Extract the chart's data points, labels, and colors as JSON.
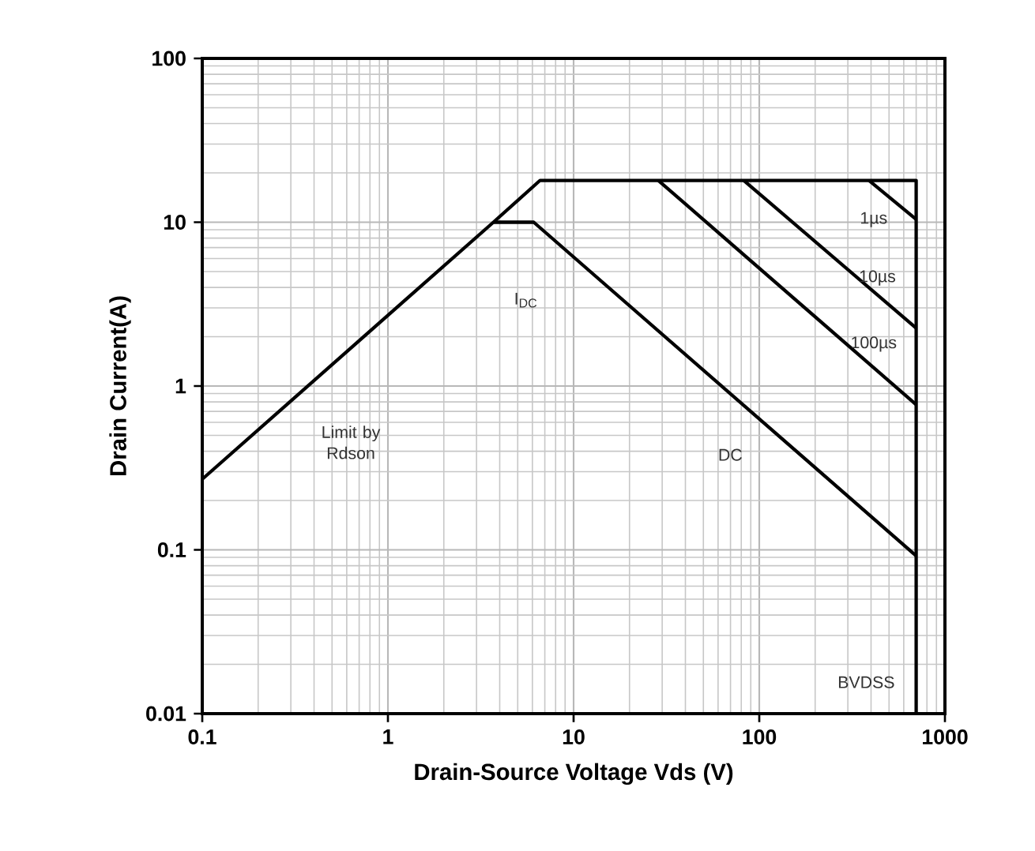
{
  "chart_data": {
    "type": "line",
    "xlabel": "Drain-Source Voltage Vds (V)",
    "ylabel": "Drain Current(A)",
    "log": "xy",
    "grid": true,
    "marker": "none",
    "line_style": "solid",
    "xlim": [
      0.1,
      1000
    ],
    "ylim": [
      0.01,
      100
    ],
    "xticks": [
      0.1,
      1,
      10,
      100,
      1000
    ],
    "yticks": [
      0.01,
      0.1,
      1,
      10,
      100
    ],
    "series": [
      {
        "color": "#000000",
        "x": [
          0.1,
          3.7,
          6.6,
          700,
          700
        ],
        "values": [
          0.27,
          10,
          18,
          18,
          0.01
        ]
      },
      {
        "color": "#000000",
        "x": [
          3.7,
          6.1,
          700
        ],
        "values": [
          10,
          10,
          0.092
        ]
      },
      {
        "color": "#000000",
        "x": [
          28.6,
          700
        ],
        "values": [
          18,
          0.77
        ]
      },
      {
        "color": "#000000",
        "x": [
          82.5,
          700
        ],
        "values": [
          18,
          2.26
        ]
      },
      {
        "color": "#000000",
        "x": [
          390,
          700
        ],
        "values": [
          18,
          10.4
        ]
      }
    ],
    "annotations": [
      "Limit by Rdson",
      "I$_{DC}$",
      "DC",
      "1µs",
      "10µs",
      "100µs",
      "BVDSS"
    ]
  }
}
